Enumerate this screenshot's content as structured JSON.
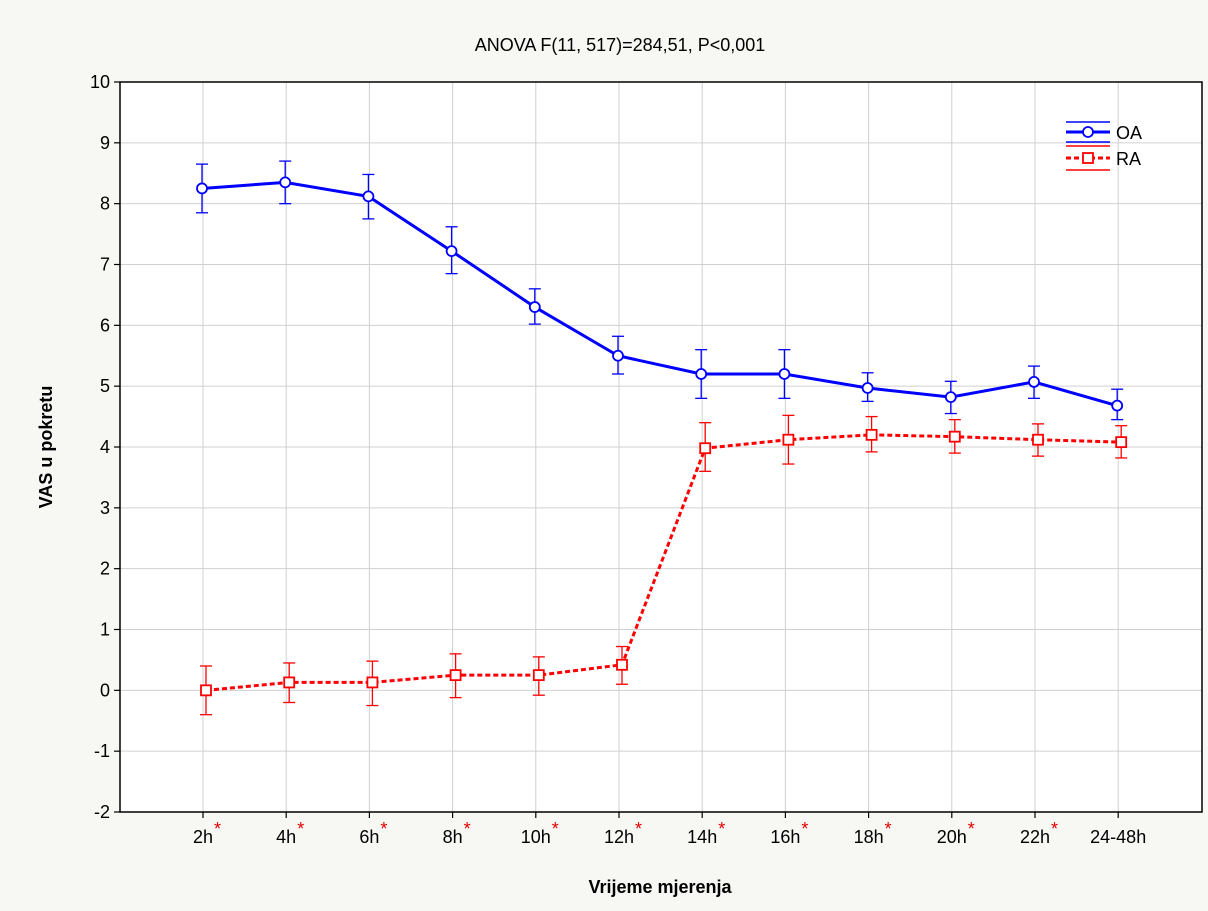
{
  "chart_data": {
    "type": "line",
    "title": "ANOVA F(11, 517)=284,51, P<0,001",
    "xlabel": "Vrijeme mjerenja",
    "ylabel": "VAS u pokretu",
    "ylim": [
      -2,
      10
    ],
    "yticks": [
      "-2",
      "-1",
      "0",
      "1",
      "2",
      "3",
      "4",
      "5",
      "6",
      "7",
      "8",
      "9",
      "10"
    ],
    "categories": [
      "2h",
      "4h",
      "6h",
      "8h",
      "10h",
      "12h",
      "14h",
      "16h",
      "18h",
      "20h",
      "22h",
      "24-48h"
    ],
    "significance_marker": "*",
    "significant_categories": [
      "2h",
      "4h",
      "6h",
      "8h",
      "10h",
      "12h",
      "14h",
      "16h",
      "18h",
      "20h",
      "22h"
    ],
    "grid": true,
    "legend_position": "top-right",
    "series": [
      {
        "name": "OA",
        "color": "#0000ff",
        "line_style": "solid",
        "marker": "circle",
        "values": [
          8.25,
          8.35,
          8.12,
          7.22,
          6.3,
          5.5,
          5.2,
          5.2,
          4.97,
          4.82,
          5.07,
          4.68
        ],
        "error_low": [
          7.85,
          8.0,
          7.75,
          6.85,
          6.02,
          5.2,
          4.8,
          4.8,
          4.75,
          4.55,
          4.8,
          4.45
        ],
        "error_high": [
          8.65,
          8.7,
          8.48,
          7.62,
          6.6,
          5.82,
          5.6,
          5.6,
          5.22,
          5.08,
          5.33,
          4.95
        ]
      },
      {
        "name": "RA",
        "color": "#ff0000",
        "line_style": "dashed",
        "marker": "square",
        "values": [
          0.0,
          0.13,
          0.13,
          0.25,
          0.25,
          0.42,
          3.98,
          4.12,
          4.2,
          4.17,
          4.12,
          4.08
        ],
        "error_low": [
          -0.4,
          -0.2,
          -0.25,
          -0.12,
          -0.08,
          0.1,
          3.6,
          3.72,
          3.92,
          3.9,
          3.85,
          3.82
        ],
        "error_high": [
          0.4,
          0.45,
          0.48,
          0.6,
          0.55,
          0.72,
          4.4,
          4.52,
          4.5,
          4.45,
          4.38,
          4.35
        ]
      }
    ]
  }
}
